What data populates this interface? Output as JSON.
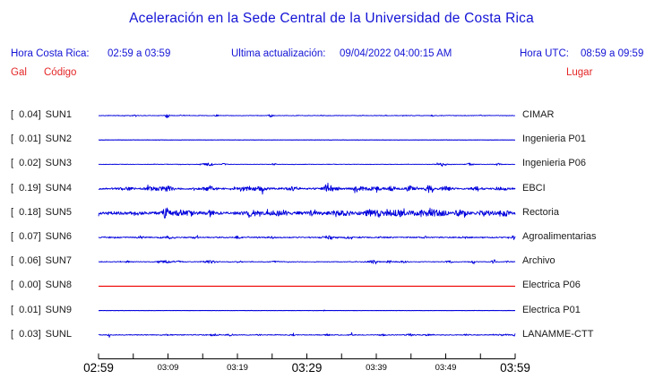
{
  "title": "Aceleración en la Sede Central de la Universidad de Costa Rica",
  "header": {
    "local_label": "Hora Costa Rica:",
    "local_value": "02:59 a 03:59",
    "update_label": "Ultima actualización:",
    "update_value": "09/04/2022 04:00:15 AM",
    "utc_label": "Hora UTC:",
    "utc_value": "08:59 a 09:59"
  },
  "column_headers": {
    "gal": "Gal",
    "codigo": "Código",
    "lugar": "Lugar"
  },
  "colors": {
    "heading_blue": "#1414d6",
    "red_text": "#e42626",
    "trace_blue": "#0000dd",
    "trace_red": "#ee0000",
    "label_text": "#1a1a1a",
    "axis_black": "#000000"
  },
  "chart_data": {
    "type": "line",
    "description": "Ten one-hour accelerometer traces (Gal peak value per station), 02:59–03:59 local time",
    "x_unit": "minutes after 02:59",
    "x_range": [
      0,
      60
    ],
    "tick_interval_min": 5,
    "axis_labels": [
      {
        "text": "02:59",
        "min": 0,
        "size": "major"
      },
      {
        "text": "03:09",
        "min": 10,
        "size": "minor"
      },
      {
        "text": "03:19",
        "min": 20,
        "size": "minor"
      },
      {
        "text": "03:29",
        "min": 30,
        "size": "major"
      },
      {
        "text": "03:39",
        "min": 40,
        "size": "minor"
      },
      {
        "text": "03:49",
        "min": 50,
        "size": "minor"
      },
      {
        "text": "03:59",
        "min": 60,
        "size": "major"
      }
    ],
    "series": [
      {
        "gal": 0.04,
        "gal_display": "[  0.04]",
        "code": "SUN1",
        "location": "CIMAR",
        "color": "blue",
        "base_amp": 0.3,
        "bursts": [
          [
            5.3,
            1.1,
            0.25
          ],
          [
            9.9,
            2.4,
            0.3
          ],
          [
            12,
            0.8,
            0.3
          ],
          [
            17,
            1.0,
            0.25
          ],
          [
            24.8,
            1.4,
            0.3
          ],
          [
            48,
            0.9,
            0.25
          ],
          [
            55,
            0.6,
            0.2
          ]
        ]
      },
      {
        "gal": 0.01,
        "gal_display": "[  0.01]",
        "code": "SUN2",
        "location": "Ingenieria P01",
        "color": "blue",
        "base_amp": 0.12,
        "bursts": []
      },
      {
        "gal": 0.02,
        "gal_display": "[  0.02]",
        "code": "SUN3",
        "location": "Ingenieria P06",
        "color": "blue",
        "base_amp": 0.25,
        "bursts": [
          [
            15.7,
            1.4,
            0.9
          ],
          [
            18,
            0.8,
            0.4
          ],
          [
            25.3,
            0.9,
            0.3
          ],
          [
            49.5,
            1.2,
            0.8
          ],
          [
            53.5,
            1.2,
            0.5
          ],
          [
            57.6,
            1.0,
            0.4
          ]
        ]
      },
      {
        "gal": 0.19,
        "gal_display": "[  0.19]",
        "code": "SUN4",
        "location": "EBCI",
        "color": "blue",
        "base_amp": 0.9,
        "bursts": [
          [
            4,
            1.2,
            1
          ],
          [
            8,
            1.8,
            1.2
          ],
          [
            10,
            2.2,
            0.8
          ],
          [
            16,
            1.6,
            1
          ],
          [
            21.5,
            2.2,
            1.2
          ],
          [
            23.5,
            2.0,
            0.8
          ],
          [
            28,
            1.8,
            0.8
          ],
          [
            32.8,
            6.5,
            0.35
          ],
          [
            33.5,
            2,
            1
          ],
          [
            37.5,
            1.8,
            1
          ],
          [
            40,
            1.5,
            1
          ],
          [
            42.3,
            3.5,
            0.4
          ],
          [
            44.8,
            2.6,
            0.6
          ],
          [
            47.6,
            3.4,
            0.5
          ],
          [
            50,
            1.8,
            0.8
          ],
          [
            54.5,
            1.4,
            0.8
          ],
          [
            58,
            1.3,
            0.8
          ]
        ]
      },
      {
        "gal": 0.18,
        "gal_display": "[  0.18]",
        "code": "SUN5",
        "location": "Rectoria",
        "color": "blue",
        "base_amp": 1.7,
        "bursts": [
          [
            9.7,
            5.5,
            0.4
          ],
          [
            12,
            2,
            1.5
          ],
          [
            16.2,
            3.5,
            0.35
          ],
          [
            22,
            2,
            1
          ],
          [
            26,
            1.5,
            1.5
          ],
          [
            31,
            2.2,
            1
          ],
          [
            35,
            1.8,
            1
          ],
          [
            39.5,
            2.2,
            1.5
          ],
          [
            43,
            2.6,
            1.5
          ],
          [
            46.5,
            2.8,
            1.2
          ],
          [
            49,
            2.4,
            1
          ],
          [
            52,
            2.2,
            0.8
          ],
          [
            55.5,
            1.6,
            1
          ],
          [
            58.5,
            2.2,
            0.6
          ]
        ]
      },
      {
        "gal": 0.07,
        "gal_display": "[  0.07]",
        "code": "SUN6",
        "location": "Agroalimentarias",
        "color": "blue",
        "base_amp": 0.6,
        "bursts": [
          [
            2,
            0.8,
            0.4
          ],
          [
            6,
            1.4,
            0.4
          ],
          [
            10,
            0.8,
            0.8
          ],
          [
            14,
            0.7,
            0.5
          ],
          [
            20,
            0.9,
            0.5
          ],
          [
            25,
            0.7,
            0.5
          ],
          [
            33,
            1.5,
            0.7
          ],
          [
            36,
            1.2,
            0.5
          ],
          [
            41,
            0.8,
            0.5
          ],
          [
            47,
            0.9,
            0.4
          ],
          [
            53,
            0.8,
            0.4
          ],
          [
            59.8,
            2.2,
            0.3
          ]
        ]
      },
      {
        "gal": 0.06,
        "gal_display": "[  0.06]",
        "code": "SUN7",
        "location": "Archivo",
        "color": "blue",
        "base_amp": 0.35,
        "bursts": [
          [
            4.2,
            0.9,
            0.3
          ],
          [
            9.5,
            1.3,
            0.9
          ],
          [
            11.5,
            1.0,
            0.5
          ],
          [
            16,
            1.3,
            0.9
          ],
          [
            20,
            0.7,
            0.4
          ],
          [
            25.5,
            0.9,
            0.5
          ],
          [
            39.5,
            1.6,
            0.8
          ],
          [
            42,
            1.4,
            0.6
          ],
          [
            44,
            1.2,
            0.5
          ],
          [
            50.5,
            1.1,
            0.5
          ],
          [
            54,
            0.8,
            0.4
          ],
          [
            57,
            2.0,
            0.35
          ],
          [
            59,
            0.9,
            0.4
          ]
        ]
      },
      {
        "gal": 0.0,
        "gal_display": "[  0.00]",
        "code": "SUN8",
        "location": "Electrica P06",
        "color": "red",
        "base_amp": 0,
        "bursts": []
      },
      {
        "gal": 0.01,
        "gal_display": "[  0.01]",
        "code": "SUN9",
        "location": "Electrica P01",
        "color": "blue",
        "base_amp": 0.1,
        "bursts": [
          [
            32.5,
            0.8,
            0.12
          ]
        ]
      },
      {
        "gal": 0.03,
        "gal_display": "[  0.03]",
        "code": "SUNL",
        "location": "LANAMME-CTT",
        "color": "blue",
        "base_amp": 0.4,
        "bursts": [
          [
            1.5,
            1.1,
            0.2
          ],
          [
            10,
            0.6,
            0.4
          ],
          [
            16.5,
            0.9,
            0.8
          ],
          [
            19,
            0.8,
            0.5
          ],
          [
            23,
            0.7,
            0.4
          ],
          [
            28,
            0.9,
            0.4
          ],
          [
            33,
            0.7,
            0.4
          ],
          [
            36.5,
            0.8,
            0.4
          ],
          [
            41,
            0.7,
            0.4
          ],
          [
            45,
            0.9,
            0.8
          ],
          [
            47.5,
            0.8,
            0.5
          ],
          [
            53,
            0.7,
            0.4
          ],
          [
            58.5,
            1.0,
            0.7
          ],
          [
            60,
            1.2,
            0.3
          ]
        ]
      }
    ]
  }
}
